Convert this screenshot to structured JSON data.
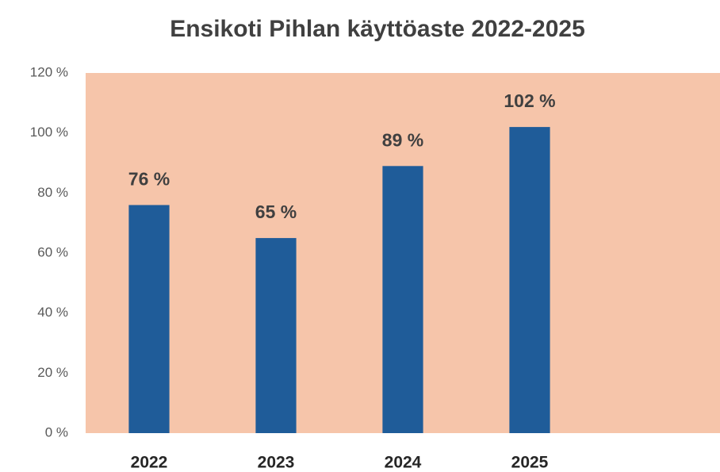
{
  "chart_data": {
    "type": "bar",
    "title": "Ensikoti Pihlan käyttöaste 2022-2025",
    "categories": [
      "2022",
      "2023",
      "2024",
      "2025",
      null
    ],
    "values": [
      76,
      65,
      89,
      102,
      null
    ],
    "value_labels": [
      "76 %",
      "65 %",
      "89 %",
      "102 %",
      null
    ],
    "color": "#1f5c99",
    "background": "#f6c5aa",
    "ylim": [
      0,
      120
    ],
    "yticks": [
      {
        "value": 0,
        "label": "0 %"
      },
      {
        "value": 20,
        "label": "20 %"
      },
      {
        "value": 40,
        "label": "40 %"
      },
      {
        "value": 60,
        "label": "60 %"
      },
      {
        "value": 80,
        "label": "80 %"
      },
      {
        "value": 100,
        "label": "100 %"
      },
      {
        "value": 120,
        "label": "120 %"
      }
    ],
    "grid": false
  }
}
